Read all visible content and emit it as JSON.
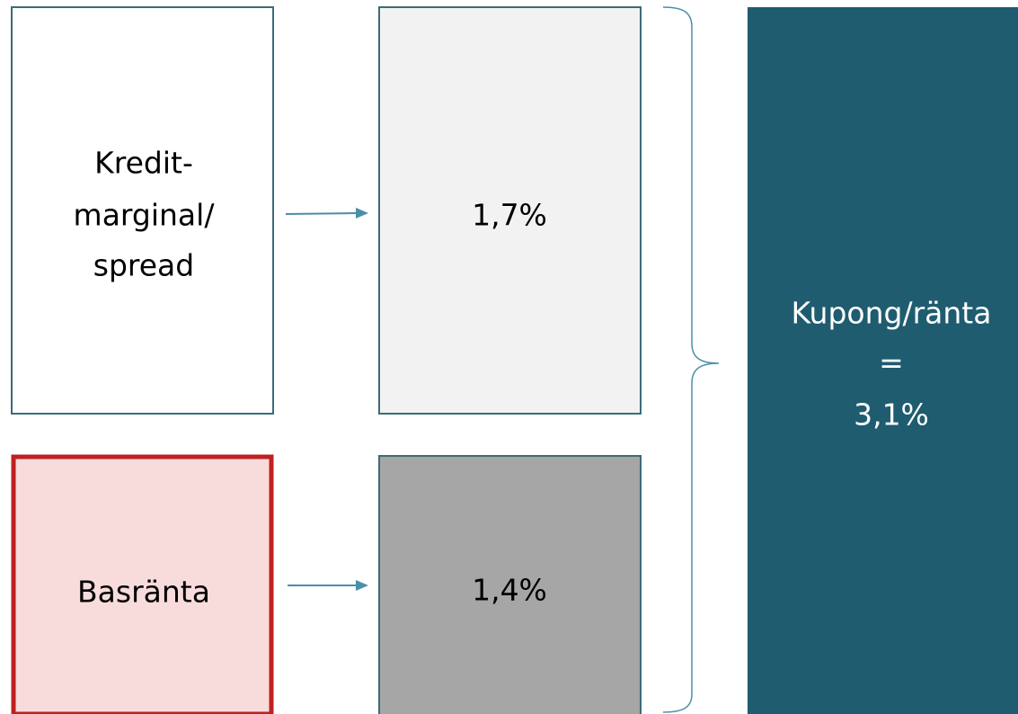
{
  "nodes": [
    {
      "lines": [
        "Kredit-",
        "marginal/",
        "spread"
      ]
    },
    {
      "lines": [
        "1,7%"
      ]
    },
    {
      "lines": [
        "Basränta"
      ]
    },
    {
      "lines": [
        "1,4%"
      ]
    },
    {
      "lines": [
        "Kupong/ränta",
        "=",
        "3,1%"
      ]
    }
  ]
}
